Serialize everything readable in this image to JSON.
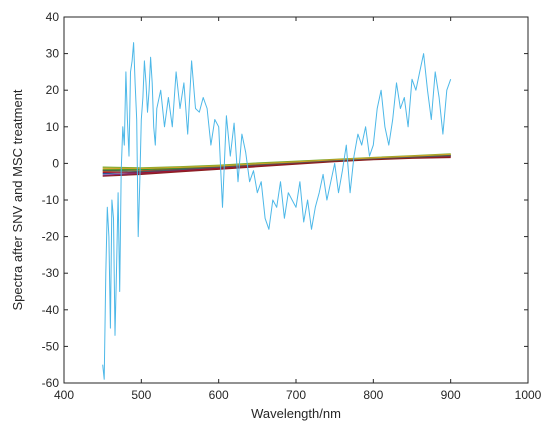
{
  "chart_data": {
    "type": "line",
    "title": "",
    "xlabel": "Wavelength/nm",
    "ylabel": "Spectra after SNV and MSC treatment",
    "xlim": [
      400,
      1000
    ],
    "ylim": [
      -60,
      40
    ],
    "xticks": [
      400,
      500,
      600,
      700,
      800,
      900,
      1000
    ],
    "yticks": [
      -60,
      -50,
      -40,
      -30,
      -20,
      -10,
      0,
      10,
      20,
      30,
      40
    ],
    "grid": false,
    "legend": "none",
    "x_range": [
      450,
      900
    ],
    "series": [
      {
        "color": "#4db8e8",
        "role": "outlier",
        "x": [
          450,
          452,
          454,
          456,
          458,
          460,
          462,
          464,
          466,
          468,
          470,
          472,
          474,
          476,
          478,
          480,
          482,
          484,
          486,
          488,
          490,
          492,
          494,
          496,
          498,
          500,
          502,
          504,
          506,
          508,
          510,
          512,
          514,
          516,
          518,
          520,
          525,
          530,
          535,
          540,
          545,
          550,
          555,
          560,
          565,
          570,
          575,
          580,
          585,
          590,
          595,
          600,
          605,
          610,
          615,
          620,
          625,
          630,
          635,
          640,
          645,
          650,
          655,
          660,
          665,
          670,
          675,
          680,
          685,
          690,
          695,
          700,
          705,
          710,
          715,
          720,
          725,
          730,
          735,
          740,
          745,
          750,
          755,
          760,
          765,
          770,
          775,
          780,
          785,
          790,
          795,
          800,
          805,
          810,
          815,
          820,
          825,
          830,
          835,
          840,
          845,
          850,
          855,
          860,
          865,
          870,
          875,
          880,
          885,
          890,
          895,
          900
        ],
        "y": [
          -55,
          -59,
          -30,
          -12,
          -20,
          -45,
          -10,
          -15,
          -47,
          -28,
          -8,
          -35,
          -2,
          10,
          5,
          25,
          12,
          2,
          25,
          28,
          33,
          22,
          12,
          -20,
          -5,
          12,
          18,
          28,
          22,
          14,
          20,
          29,
          22,
          10,
          5,
          15,
          20,
          10,
          18,
          10,
          25,
          15,
          22,
          8,
          28,
          15,
          14,
          18,
          15,
          5,
          12,
          10,
          -12,
          13,
          2,
          11,
          -5,
          8,
          3,
          -5,
          -2,
          -8,
          -5,
          -15,
          -18,
          -10,
          -12,
          -5,
          -15,
          -8,
          -10,
          -12,
          -5,
          -16,
          -10,
          -18,
          -12,
          -8,
          -3,
          -10,
          -5,
          0,
          -8,
          -2,
          5,
          -8,
          2,
          8,
          5,
          10,
          2,
          5,
          15,
          20,
          10,
          5,
          12,
          22,
          15,
          18,
          10,
          23,
          20,
          25,
          30,
          20,
          12,
          25,
          18,
          8,
          20,
          23
        ]
      },
      {
        "color": "#0072bd",
        "x": [
          450,
          500,
          550,
          600,
          650,
          700,
          750,
          800,
          850,
          900
        ],
        "y": [
          -2.8,
          -2.4,
          -1.8,
          -1.2,
          -0.5,
          0.2,
          0.8,
          1.4,
          1.9,
          2.3
        ]
      },
      {
        "color": "#d95319",
        "x": [
          450,
          500,
          550,
          600,
          650,
          700,
          750,
          800,
          850,
          900
        ],
        "y": [
          -2.2,
          -2.0,
          -1.5,
          -0.9,
          -0.3,
          0.3,
          0.9,
          1.3,
          1.8,
          2.0
        ]
      },
      {
        "color": "#edb120",
        "x": [
          450,
          500,
          550,
          600,
          650,
          700,
          750,
          800,
          850,
          900
        ],
        "y": [
          -1.6,
          -1.5,
          -1.0,
          -0.6,
          0.0,
          0.5,
          1.0,
          1.5,
          1.9,
          2.4
        ]
      },
      {
        "color": "#7e2f8e",
        "x": [
          450,
          500,
          550,
          600,
          650,
          700,
          750,
          800,
          850,
          900
        ],
        "y": [
          -3.2,
          -2.8,
          -2.1,
          -1.5,
          -0.8,
          -0.1,
          0.6,
          1.1,
          1.6,
          1.9
        ]
      },
      {
        "color": "#77ac30",
        "x": [
          450,
          500,
          550,
          600,
          650,
          700,
          750,
          800,
          850,
          900
        ],
        "y": [
          -1.0,
          -1.2,
          -0.9,
          -0.5,
          0.1,
          0.6,
          1.1,
          1.6,
          2.1,
          2.6
        ]
      },
      {
        "color": "#a2142f",
        "x": [
          450,
          500,
          550,
          600,
          650,
          700,
          750,
          800,
          850,
          900
        ],
        "y": [
          -2.5,
          -2.6,
          -2.0,
          -1.3,
          -0.6,
          0.1,
          0.7,
          1.2,
          1.5,
          1.8
        ]
      },
      {
        "color": "#2f8f2f",
        "x": [
          450,
          500,
          550,
          600,
          650,
          700,
          750,
          800,
          850,
          900
        ],
        "y": [
          -1.8,
          -1.7,
          -1.3,
          -0.8,
          -0.2,
          0.4,
          1.0,
          1.4,
          1.8,
          2.2
        ]
      },
      {
        "color": "#8b1e1e",
        "x": [
          450,
          500,
          550,
          600,
          650,
          700,
          750,
          800,
          850,
          900
        ],
        "y": [
          -3.5,
          -3.0,
          -2.3,
          -1.6,
          -0.9,
          -0.2,
          0.5,
          1.0,
          1.4,
          1.6
        ]
      },
      {
        "color": "#555555",
        "x": [
          450,
          500,
          550,
          600,
          650,
          700,
          750,
          800,
          850,
          900
        ],
        "y": [
          -2.0,
          -2.2,
          -1.6,
          -1.0,
          -0.4,
          0.2,
          0.8,
          1.3,
          1.7,
          2.1
        ]
      },
      {
        "color": "#c9a227",
        "x": [
          450,
          500,
          550,
          600,
          650,
          700,
          750,
          800,
          850,
          900
        ],
        "y": [
          -1.3,
          -1.4,
          -1.1,
          -0.7,
          -0.1,
          0.4,
          1.0,
          1.5,
          2.0,
          2.5
        ]
      }
    ]
  }
}
